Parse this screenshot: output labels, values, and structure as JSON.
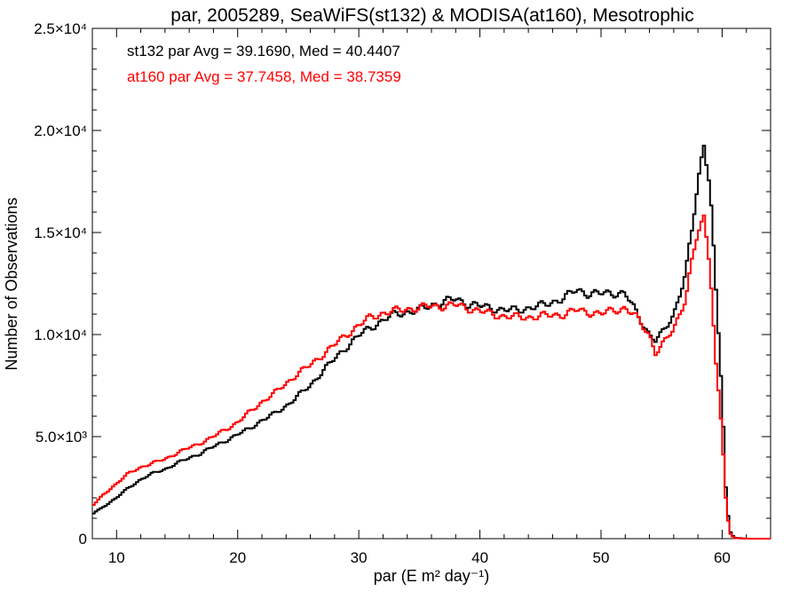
{
  "chart_data": {
    "type": "line",
    "step": true,
    "title": "par, 2005289, SeaWiFS(st132) & MODISA(at160), Mesotrophic",
    "xlabel": "par (E m² day⁻¹)",
    "ylabel": "Number of Observations",
    "xlim": [
      8,
      64
    ],
    "ylim": [
      0,
      25000
    ],
    "x_ticks": [
      10,
      20,
      30,
      40,
      50,
      60
    ],
    "y_ticks": [
      {
        "value": 0,
        "label": "0"
      },
      {
        "value": 5000,
        "label": "5.0×10³"
      },
      {
        "value": 10000,
        "label": "1.0×10⁴"
      },
      {
        "value": 15000,
        "label": "1.5×10⁴"
      },
      {
        "value": 20000,
        "label": "2.0×10⁴"
      },
      {
        "value": 25000,
        "label": "2.5×10⁴"
      }
    ],
    "annotations": [
      {
        "text": "st132 par Avg = 39.1690, Med = 40.4407",
        "color": "#000000"
      },
      {
        "text": "at160 par Avg = 37.7458, Med = 38.7359",
        "color": "#ff0000"
      }
    ],
    "series": [
      {
        "color": "#000000",
        "x": [
          8,
          9,
          10,
          11,
          12,
          13,
          14,
          15,
          16,
          17,
          18,
          19,
          20,
          21,
          22,
          23,
          24,
          25,
          26,
          27,
          28,
          29,
          30,
          31,
          32,
          33,
          34,
          35,
          36,
          37,
          38,
          39,
          40,
          41,
          42,
          43,
          44,
          45,
          46,
          47,
          48,
          49,
          50,
          51,
          52,
          53,
          54,
          54.5,
          55,
          56,
          57,
          57.5,
          58,
          58.5,
          59,
          59.5,
          60,
          60.3,
          60.6,
          61,
          62,
          63,
          64
        ],
        "y": [
          1200,
          1600,
          2000,
          2500,
          2900,
          3200,
          3400,
          3700,
          3950,
          4200,
          4500,
          4800,
          5100,
          5400,
          5800,
          6100,
          6500,
          7000,
          7500,
          8200,
          8800,
          9400,
          9950,
          10350,
          10700,
          11000,
          11100,
          11200,
          11450,
          11600,
          11750,
          11500,
          11400,
          11300,
          11200,
          11200,
          11300,
          11400,
          11600,
          11800,
          12200,
          12000,
          12000,
          12050,
          12000,
          11000,
          10000,
          9700,
          10000,
          11000,
          13000,
          15000,
          17500,
          19300,
          17500,
          12000,
          7000,
          2500,
          400,
          50,
          0,
          0,
          0
        ]
      },
      {
        "color": "#ff0000",
        "x": [
          8,
          9,
          10,
          11,
          12,
          13,
          14,
          15,
          16,
          17,
          18,
          19,
          20,
          21,
          22,
          23,
          24,
          25,
          26,
          27,
          28,
          29,
          30,
          31,
          32,
          33,
          34,
          35,
          36,
          37,
          38,
          39,
          40,
          41,
          42,
          43,
          44,
          45,
          46,
          47,
          48,
          49,
          50,
          51,
          52,
          53,
          54,
          54.5,
          55,
          56,
          57,
          57.5,
          58,
          58.5,
          59,
          59.5,
          60,
          60.3,
          60.6,
          61,
          62,
          63,
          64
        ],
        "y": [
          1600,
          2200,
          2700,
          3200,
          3500,
          3700,
          3900,
          4200,
          4450,
          4700,
          5000,
          5350,
          5700,
          6200,
          6700,
          7100,
          7600,
          8100,
          8500,
          9000,
          9500,
          10000,
          10450,
          10850,
          11050,
          11150,
          11250,
          11300,
          11400,
          11400,
          11450,
          11300,
          11150,
          11000,
          10900,
          10850,
          10850,
          10900,
          10950,
          11000,
          11200,
          11100,
          11000,
          11200,
          11300,
          10800,
          10000,
          9100,
          9400,
          10300,
          11800,
          13500,
          15000,
          15700,
          13500,
          8500,
          5200,
          2000,
          300,
          30,
          0,
          0,
          0
        ]
      }
    ]
  }
}
